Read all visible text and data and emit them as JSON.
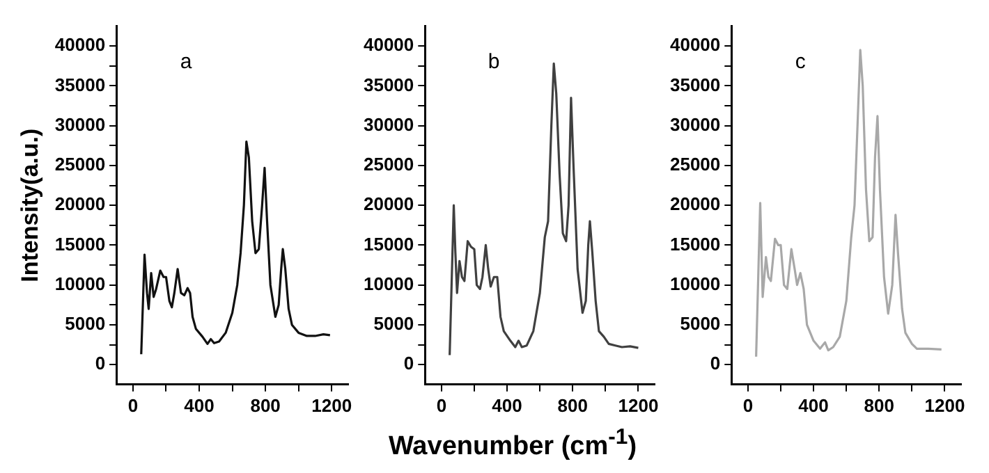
{
  "chart_data": [
    {
      "type": "line",
      "ylabel": "Intensity(a.u.)",
      "annotations": [
        "a"
      ],
      "grid": false,
      "legend": false,
      "marker": "none",
      "line_style": "solid",
      "xlim": [
        -100,
        1300
      ],
      "xticks": [
        0,
        {
          "value": 200,
          "label": null
        },
        400,
        {
          "value": 600,
          "label": null
        },
        800,
        {
          "value": 1000,
          "label": null
        },
        1200
      ],
      "ylim": [
        -2500,
        42500
      ],
      "yticks": [
        0,
        {
          "value": 2500,
          "label": null
        },
        5000,
        {
          "value": 7500,
          "label": null
        },
        10000,
        {
          "value": 12500,
          "label": null
        },
        15000,
        {
          "value": 17500,
          "label": null
        },
        20000,
        {
          "value": 22500,
          "label": null
        },
        25000,
        {
          "value": 27500,
          "label": null
        },
        30000,
        {
          "value": 32500,
          "label": null
        },
        35000,
        {
          "value": 37500,
          "label": null
        },
        40000
      ],
      "x": [
        50,
        70,
        85,
        95,
        110,
        125,
        140,
        165,
        185,
        200,
        220,
        235,
        250,
        270,
        290,
        310,
        330,
        345,
        360,
        380,
        420,
        450,
        470,
        490,
        520,
        560,
        600,
        630,
        650,
        670,
        685,
        700,
        720,
        740,
        760,
        780,
        795,
        810,
        830,
        860,
        880,
        895,
        905,
        920,
        940,
        960,
        1000,
        1050,
        1100,
        1150,
        1190
      ],
      "series": [
        {
          "color": "#111111",
          "values": [
            1300,
            13800,
            9000,
            7000,
            11500,
            8500,
            9500,
            11800,
            11000,
            11000,
            8000,
            7200,
            9000,
            12000,
            9000,
            8700,
            9600,
            9000,
            6000,
            4500,
            3500,
            2600,
            3200,
            2700,
            2900,
            4000,
            6500,
            10000,
            14000,
            20000,
            28000,
            26000,
            18000,
            14000,
            14500,
            20000,
            24700,
            18000,
            10000,
            6000,
            7500,
            12000,
            14500,
            12000,
            7000,
            5000,
            4000,
            3600,
            3600,
            3800,
            3700
          ]
        }
      ]
    },
    {
      "type": "line",
      "xlabel": "Wavenumber (cm$^{-1}$)",
      "annotations": [
        "b"
      ],
      "grid": false,
      "legend": false,
      "marker": "none",
      "line_style": "solid",
      "xlim": [
        -100,
        1300
      ],
      "xticks": [
        0,
        {
          "value": 200,
          "label": null
        },
        400,
        {
          "value": 600,
          "label": null
        },
        800,
        {
          "value": 1000,
          "label": null
        },
        1200
      ],
      "ylim": [
        -2500,
        42500
      ],
      "yticks": [
        0,
        {
          "value": 2500,
          "label": null
        },
        5000,
        {
          "value": 7500,
          "label": null
        },
        10000,
        {
          "value": 12500,
          "label": null
        },
        15000,
        {
          "value": 17500,
          "label": null
        },
        20000,
        {
          "value": 22500,
          "label": null
        },
        25000,
        {
          "value": 27500,
          "label": null
        },
        30000,
        {
          "value": 32500,
          "label": null
        },
        35000,
        {
          "value": 37500,
          "label": null
        },
        40000
      ],
      "x": [
        50,
        75,
        85,
        95,
        110,
        125,
        140,
        160,
        180,
        200,
        215,
        235,
        250,
        270,
        285,
        300,
        320,
        340,
        360,
        380,
        420,
        450,
        470,
        490,
        520,
        560,
        600,
        630,
        650,
        670,
        685,
        700,
        720,
        740,
        760,
        775,
        790,
        805,
        830,
        860,
        880,
        895,
        905,
        920,
        940,
        960,
        990,
        1020,
        1060,
        1100,
        1150,
        1200
      ],
      "series": [
        {
          "color": "#404040",
          "values": [
            1200,
            20000,
            14000,
            9000,
            13000,
            11000,
            10500,
            15500,
            14800,
            14500,
            10000,
            9500,
            11000,
            15000,
            12000,
            9800,
            11000,
            11000,
            6000,
            4200,
            3000,
            2200,
            3000,
            2200,
            2400,
            4200,
            9000,
            16000,
            18000,
            30000,
            37800,
            34000,
            24000,
            16500,
            15500,
            20000,
            33500,
            25000,
            12000,
            6500,
            8000,
            15000,
            18000,
            14000,
            8000,
            4200,
            3500,
            2600,
            2400,
            2200,
            2300,
            2100
          ]
        }
      ]
    },
    {
      "type": "line",
      "annotations": [
        "c"
      ],
      "grid": false,
      "legend": false,
      "marker": "none",
      "line_style": "solid",
      "xlim": [
        -100,
        1300
      ],
      "xticks": [
        0,
        {
          "value": 200,
          "label": null
        },
        400,
        {
          "value": 600,
          "label": null
        },
        800,
        {
          "value": 1000,
          "label": null
        },
        1200
      ],
      "ylim": [
        -2500,
        42500
      ],
      "yticks": [
        0,
        {
          "value": 2500,
          "label": null
        },
        5000,
        {
          "value": 7500,
          "label": null
        },
        10000,
        {
          "value": 12500,
          "label": null
        },
        15000,
        {
          "value": 17500,
          "label": null
        },
        20000,
        {
          "value": 22500,
          "label": null
        },
        25000,
        {
          "value": 27500,
          "label": null
        },
        30000,
        {
          "value": 32500,
          "label": null
        },
        35000,
        {
          "value": 37500,
          "label": null
        },
        40000
      ],
      "x": [
        50,
        75,
        90,
        110,
        125,
        140,
        165,
        185,
        200,
        220,
        240,
        265,
        285,
        300,
        320,
        340,
        360,
        400,
        440,
        470,
        490,
        520,
        560,
        600,
        630,
        650,
        670,
        685,
        700,
        720,
        740,
        760,
        775,
        790,
        805,
        830,
        855,
        880,
        900,
        915,
        940,
        960,
        1000,
        1030,
        1100,
        1180
      ],
      "series": [
        {
          "color": "#a8a8a8",
          "values": [
            1000,
            20300,
            8500,
            13500,
            11000,
            10500,
            15800,
            15000,
            15000,
            10000,
            9500,
            14500,
            12000,
            10000,
            11500,
            9500,
            5000,
            3000,
            2000,
            2800,
            1800,
            2200,
            3500,
            8000,
            16000,
            20000,
            31000,
            39500,
            35000,
            22000,
            15500,
            16000,
            26000,
            31200,
            22000,
            11000,
            6400,
            10000,
            18800,
            14000,
            7000,
            4000,
            2600,
            2000,
            2000,
            1900
          ]
        }
      ]
    }
  ]
}
